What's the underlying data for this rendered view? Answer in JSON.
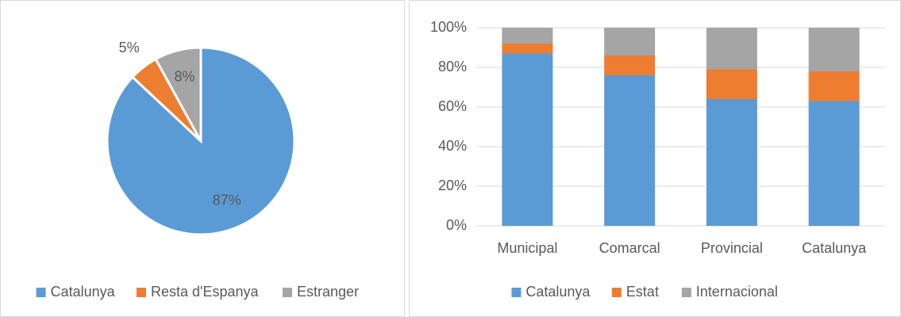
{
  "chart_data": [
    {
      "type": "pie",
      "categories": [
        "Catalunya",
        "Resta d'Espanya",
        "Estranger"
      ],
      "values": [
        87,
        5,
        8
      ],
      "value_labels": [
        "87%",
        "5%",
        "8%"
      ],
      "colors": [
        "#5b9bd5",
        "#ed7d31",
        "#a5a5a5"
      ],
      "legend": "bottom"
    },
    {
      "type": "stacked_bar",
      "categories": [
        "Municipal",
        "Comarcal",
        "Provincial",
        "Catalunya"
      ],
      "series": [
        {
          "name": "Catalunya",
          "color": "#5b9bd5",
          "values": [
            87,
            76,
            64,
            63
          ]
        },
        {
          "name": "Estat",
          "color": "#ed7d31",
          "values": [
            5,
            10,
            15,
            15
          ]
        },
        {
          "name": "Internacional",
          "color": "#a5a5a5",
          "values": [
            8,
            14,
            21,
            22
          ]
        }
      ],
      "ylim": [
        0,
        100
      ],
      "yticks": [
        {
          "value": 0,
          "label": "0%"
        },
        {
          "value": 20,
          "label": "20%"
        },
        {
          "value": 40,
          "label": "40%"
        },
        {
          "value": 60,
          "label": "60%"
        },
        {
          "value": 80,
          "label": "80%"
        },
        {
          "value": 100,
          "label": "100%"
        }
      ],
      "grid": true,
      "legend": "bottom"
    }
  ]
}
